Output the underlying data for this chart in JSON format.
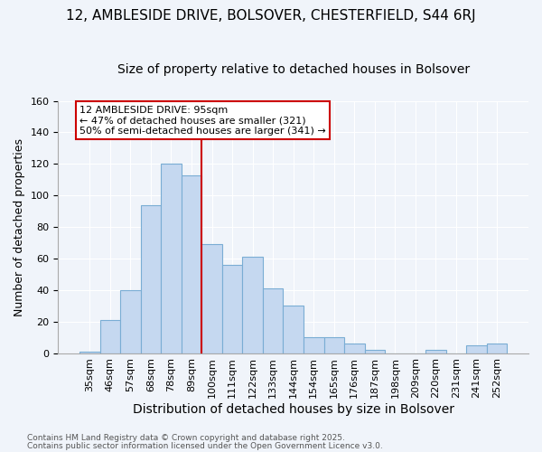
{
  "title1": "12, AMBLESIDE DRIVE, BOLSOVER, CHESTERFIELD, S44 6RJ",
  "title2": "Size of property relative to detached houses in Bolsover",
  "xlabel": "Distribution of detached houses by size in Bolsover",
  "ylabel": "Number of detached properties",
  "bins": [
    "35sqm",
    "46sqm",
    "57sqm",
    "68sqm",
    "78sqm",
    "89sqm",
    "100sqm",
    "111sqm",
    "122sqm",
    "133sqm",
    "144sqm",
    "154sqm",
    "165sqm",
    "176sqm",
    "187sqm",
    "198sqm",
    "209sqm",
    "220sqm",
    "231sqm",
    "241sqm",
    "252sqm"
  ],
  "values": [
    1,
    21,
    40,
    94,
    120,
    113,
    69,
    56,
    61,
    41,
    30,
    10,
    10,
    6,
    2,
    0,
    0,
    2,
    0,
    5,
    6
  ],
  "bar_color": "#c5d8f0",
  "bar_edge_color": "#7aadd4",
  "vline_color": "#cc0000",
  "annotation_title": "12 AMBLESIDE DRIVE: 95sqm",
  "annotation_line1": "← 47% of detached houses are smaller (321)",
  "annotation_line2": "50% of semi-detached houses are larger (341) →",
  "annotation_box_facecolor": "#ffffff",
  "annotation_box_edgecolor": "#cc0000",
  "footer1": "Contains HM Land Registry data © Crown copyright and database right 2025.",
  "footer2": "Contains public sector information licensed under the Open Government Licence v3.0.",
  "ylim": [
    0,
    160
  ],
  "yticks": [
    0,
    20,
    40,
    60,
    80,
    100,
    120,
    140,
    160
  ],
  "bg_color": "#f0f4fa",
  "plot_bg_color": "#f0f4fa",
  "grid_color": "#ffffff",
  "title1_fontsize": 11,
  "title2_fontsize": 10,
  "xlabel_fontsize": 10,
  "ylabel_fontsize": 9,
  "tick_fontsize": 8,
  "footer_fontsize": 6.5,
  "annotation_fontsize": 8
}
